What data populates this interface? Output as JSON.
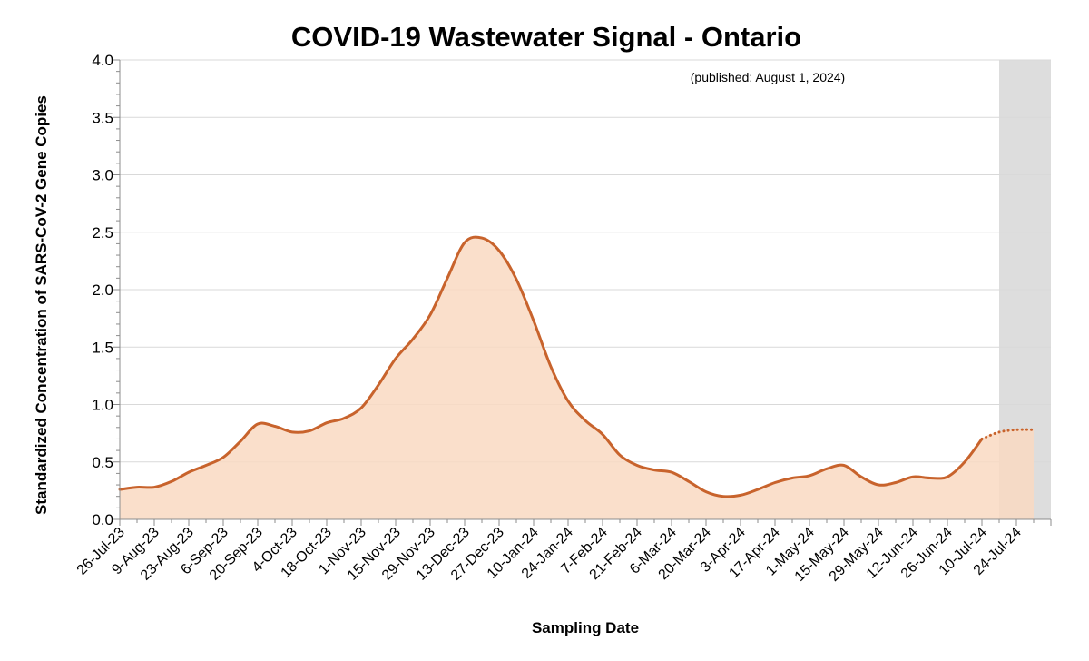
{
  "chart_data": {
    "type": "area",
    "title": "COVID-19 Wastewater Signal - Ontario",
    "note": "(published: August 1, 2024)",
    "xlabel": "Sampling Date",
    "ylabel": "Standardized Concentration of SARS-CoV-2 Gene Copies",
    "ylim": [
      0,
      4.0
    ],
    "yticks": [
      "0.0",
      "0.5",
      "1.0",
      "1.5",
      "2.0",
      "2.5",
      "3.0",
      "3.5",
      "4.0"
    ],
    "grid": true,
    "categories": [
      "26-Jul-23",
      "9-Aug-23",
      "23-Aug-23",
      "6-Sep-23",
      "20-Sep-23",
      "4-Oct-23",
      "18-Oct-23",
      "1-Nov-23",
      "15-Nov-23",
      "29-Nov-23",
      "13-Dec-23",
      "27-Dec-23",
      "10-Jan-24",
      "24-Jan-24",
      "7-Feb-24",
      "21-Feb-24",
      "6-Mar-24",
      "20-Mar-24",
      "3-Apr-24",
      "17-Apr-24",
      "1-May-24",
      "15-May-24",
      "29-May-24",
      "12-Jun-24",
      "26-Jun-24",
      "10-Jul-24",
      "24-Jul-24"
    ],
    "x_day_range": [
      0,
      378
    ],
    "series": [
      {
        "style": "solid",
        "points": [
          [
            0,
            0.26
          ],
          [
            7,
            0.28
          ],
          [
            14,
            0.28
          ],
          [
            21,
            0.33
          ],
          [
            28,
            0.41
          ],
          [
            35,
            0.47
          ],
          [
            42,
            0.54
          ],
          [
            49,
            0.68
          ],
          [
            56,
            0.83
          ],
          [
            63,
            0.81
          ],
          [
            70,
            0.76
          ],
          [
            77,
            0.77
          ],
          [
            84,
            0.84
          ],
          [
            91,
            0.88
          ],
          [
            98,
            0.97
          ],
          [
            105,
            1.17
          ],
          [
            112,
            1.4
          ],
          [
            119,
            1.57
          ],
          [
            126,
            1.78
          ],
          [
            133,
            2.1
          ],
          [
            140,
            2.41
          ],
          [
            147,
            2.45
          ],
          [
            154,
            2.34
          ],
          [
            161,
            2.09
          ],
          [
            168,
            1.73
          ],
          [
            175,
            1.33
          ],
          [
            182,
            1.03
          ],
          [
            189,
            0.86
          ],
          [
            196,
            0.74
          ],
          [
            203,
            0.56
          ],
          [
            210,
            0.47
          ],
          [
            217,
            0.43
          ],
          [
            224,
            0.41
          ],
          [
            231,
            0.33
          ],
          [
            238,
            0.24
          ],
          [
            245,
            0.2
          ],
          [
            252,
            0.21
          ],
          [
            259,
            0.26
          ],
          [
            266,
            0.32
          ],
          [
            273,
            0.36
          ],
          [
            280,
            0.38
          ],
          [
            287,
            0.44
          ],
          [
            294,
            0.47
          ],
          [
            301,
            0.37
          ],
          [
            308,
            0.3
          ],
          [
            315,
            0.32
          ],
          [
            322,
            0.37
          ],
          [
            329,
            0.36
          ],
          [
            336,
            0.37
          ],
          [
            343,
            0.5
          ],
          [
            350,
            0.7
          ]
        ]
      },
      {
        "style": "dotted",
        "points": [
          [
            350,
            0.7
          ],
          [
            357,
            0.76
          ],
          [
            364,
            0.78
          ],
          [
            371,
            0.78
          ]
        ]
      }
    ],
    "shaded_region_days": [
      357,
      378
    ],
    "colors": {
      "line": "#c8632c",
      "fill": "#f9d9c2",
      "shade": "#dddddd",
      "grid": "#d9d9d9",
      "axis": "#8c8c8c"
    }
  }
}
